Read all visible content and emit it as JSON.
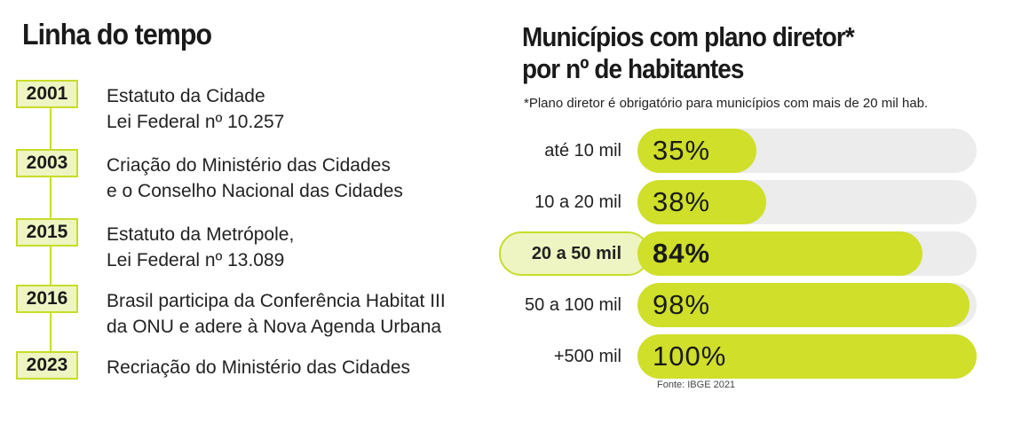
{
  "timeline": {
    "title": "Linha do tempo",
    "items": [
      {
        "year": "2001",
        "line1": "Estatuto da Cidade",
        "line2": "Lei Federal nº 10.257"
      },
      {
        "year": "2003",
        "line1": "Criação do Ministério das Cidades",
        "line2": "e o Conselho Nacional das Cidades"
      },
      {
        "year": "2015",
        "line1": "Estatuto da Metrópole,",
        "line2": "Lei Federal nº 13.089"
      },
      {
        "year": "2016",
        "line1": "Brasil participa da Conferência Habitat III",
        "line2": "da ONU e adere à Nova Agenda Urbana"
      },
      {
        "year": "2023",
        "line1": "Recriação do Ministério das Cidades",
        "line2": ""
      }
    ]
  },
  "colors": {
    "accent": "#cfdf2a",
    "accent_light": "#eef5c2",
    "track": "#ececec",
    "text": "#1a1a1a"
  },
  "chart_data": {
    "type": "bar",
    "orientation": "horizontal",
    "title_line1": "Municípios com plano diretor*",
    "title_line2": "por nº de habitantes",
    "note": "*Plano diretor é obrigatório para municípios com mais de 20 mil hab.",
    "categories": [
      "até 10 mil",
      "10 a 20 mil",
      "20 a 50 mil",
      "50 a 100 mil",
      "+500 mil"
    ],
    "values": [
      35,
      38,
      84,
      98,
      100
    ],
    "value_labels": [
      "35%",
      "38%",
      "84%",
      "98%",
      "100%"
    ],
    "highlight_index": 2,
    "xlim": [
      0,
      100
    ],
    "unit": "%",
    "source": "Fonte: IBGE 2021"
  }
}
